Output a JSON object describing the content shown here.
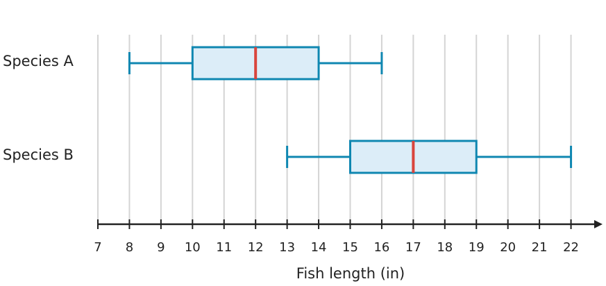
{
  "chart_data": {
    "type": "box",
    "x_label": "Fish length (in)",
    "categories": [
      "Species A",
      "Species B"
    ],
    "boxes": [
      {
        "min": 8,
        "q1": 10,
        "median": 12,
        "q3": 14,
        "max": 16
      },
      {
        "min": 13,
        "q1": 15,
        "median": 17,
        "q3": 19,
        "max": 22
      }
    ],
    "box_color": "#0f87b1",
    "box_fill": "#dcedf8",
    "median_color": "#d9453d",
    "xlim": [
      7,
      23
    ],
    "xticks": [
      7,
      8,
      9,
      10,
      11,
      12,
      13,
      14,
      15,
      16,
      17,
      18,
      19,
      20,
      21,
      22
    ],
    "grid": true
  }
}
